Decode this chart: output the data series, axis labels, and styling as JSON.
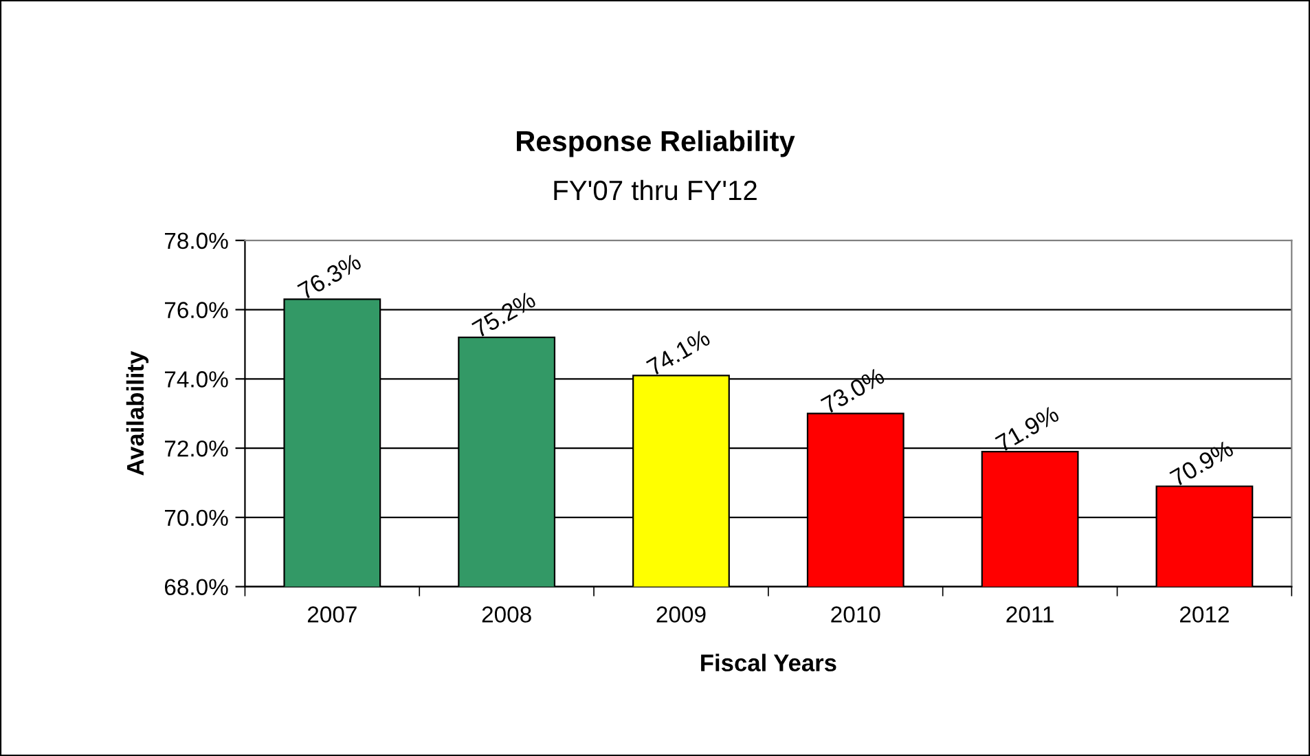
{
  "chart_data": {
    "type": "bar",
    "title": "Response Reliability",
    "subtitle": "FY'07 thru FY'12",
    "xlabel": "Fiscal Years",
    "ylabel": "Availability",
    "categories": [
      "2007",
      "2008",
      "2009",
      "2010",
      "2011",
      "2012"
    ],
    "values": [
      76.3,
      75.2,
      74.1,
      73.0,
      71.9,
      70.9
    ],
    "value_labels": [
      "76.3%",
      "75.2%",
      "74.1%",
      "73.0%",
      "71.9%",
      "70.9%"
    ],
    "colors": [
      "#339966",
      "#339966",
      "#ffff00",
      "#ff0000",
      "#ff0000",
      "#ff0000"
    ],
    "ylim": [
      68,
      78
    ],
    "yticks": [
      {
        "value": 68,
        "label": "68.0%"
      },
      {
        "value": 70,
        "label": "70.0%"
      },
      {
        "value": 72,
        "label": "72.0%"
      },
      {
        "value": 74,
        "label": "74.0%"
      },
      {
        "value": 76,
        "label": "76.0%"
      },
      {
        "value": 78,
        "label": "78.0%"
      }
    ],
    "grid": "y",
    "legend": false
  }
}
